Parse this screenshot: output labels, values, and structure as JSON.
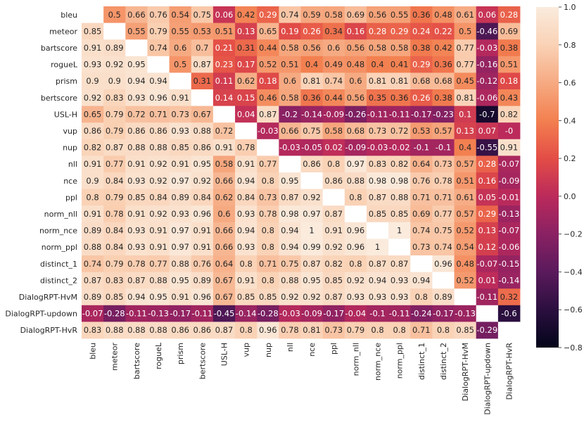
{
  "chart_data": {
    "type": "heatmap",
    "title": "",
    "xlabel": "",
    "ylabel": "",
    "labels": [
      "bleu",
      "meteor",
      "bartscore",
      "rogueL",
      "prism",
      "bertscore",
      "USL-H",
      "vup",
      "nup",
      "nll",
      "nce",
      "ppl",
      "norm_nll",
      "norm_nce",
      "norm_ppl",
      "distinct_1",
      "distinct_2",
      "DialogRPT-HvM",
      "DialogRPT-updown",
      "DialogRPT-HvR"
    ],
    "matrix": [
      [
        null,
        "0.5",
        "0.66",
        "0.76",
        "0.54",
        "0.75",
        "0.06",
        "0.42",
        "0.29",
        "0.74",
        "0.59",
        "0.58",
        "0.69",
        "0.56",
        "0.55",
        "0.36",
        "0.48",
        "0.61",
        "0.06",
        "0.28"
      ],
      [
        "0.85",
        null,
        "0.55",
        "0.79",
        "0.55",
        "0.53",
        "0.51",
        "0.13",
        "0.65",
        "0.19",
        "0.26",
        "0.34",
        "0.16",
        "0.28",
        "0.29",
        "0.24",
        "0.22",
        "0.5",
        "-0.46",
        "0.69"
      ],
      [
        "0.91",
        "0.89",
        null,
        "0.74",
        "0.6",
        "0.7",
        "0.21",
        "0.31",
        "0.44",
        "0.58",
        "0.56",
        "0.6",
        "0.56",
        "0.58",
        "0.58",
        "0.38",
        "0.42",
        "0.77",
        "-0.03",
        "0.38"
      ],
      [
        "0.93",
        "0.92",
        "0.95",
        null,
        "0.5",
        "0.87",
        "0.23",
        "0.17",
        "0.52",
        "0.51",
        "0.4",
        "0.49",
        "0.48",
        "0.4",
        "0.41",
        "0.29",
        "0.36",
        "0.77",
        "-0.16",
        "0.51"
      ],
      [
        "0.9",
        "0.9",
        "0.94",
        "0.94",
        null,
        "0.31",
        "0.11",
        "0.62",
        "0.18",
        "0.6",
        "0.81",
        "0.74",
        "0.6",
        "0.81",
        "0.81",
        "0.68",
        "0.68",
        "0.45",
        "-0.12",
        "0.18"
      ],
      [
        "0.92",
        "0.83",
        "0.93",
        "0.96",
        "0.91",
        null,
        "0.14",
        "0.15",
        "0.46",
        "0.58",
        "0.36",
        "0.44",
        "0.56",
        "0.35",
        "0.36",
        "0.26",
        "0.38",
        "0.81",
        "-0.06",
        "0.43"
      ],
      [
        "0.65",
        "0.79",
        "0.72",
        "0.71",
        "0.73",
        "0.67",
        null,
        "0.04",
        "0.87",
        "-0.2",
        "-0.14",
        "-0.09",
        "-0.26",
        "-0.11",
        "-0.11",
        "-0.17",
        "-0.23",
        "0.1",
        "-0.7",
        "0.82"
      ],
      [
        "0.86",
        "0.79",
        "0.86",
        "0.86",
        "0.93",
        "0.88",
        "0.72",
        null,
        "-0.03",
        "0.66",
        "0.75",
        "0.58",
        "0.68",
        "0.73",
        "0.72",
        "0.53",
        "0.57",
        "0.13",
        "0.07",
        "-0"
      ],
      [
        "0.82",
        "0.87",
        "0.88",
        "0.88",
        "0.85",
        "0.86",
        "0.91",
        "0.78",
        null,
        "-0.03",
        "-0.05",
        "0.02",
        "-0.09",
        "-0.03",
        "-0.02",
        "-0.1",
        "-0.1",
        "0.4",
        "-0.55",
        "0.91"
      ],
      [
        "0.91",
        "0.77",
        "0.91",
        "0.92",
        "0.91",
        "0.95",
        "0.58",
        "0.91",
        "0.77",
        null,
        "0.86",
        "0.8",
        "0.97",
        "0.83",
        "0.82",
        "0.64",
        "0.73",
        "0.57",
        "0.28",
        "-0.07"
      ],
      [
        "0.9",
        "0.84",
        "0.93",
        "0.92",
        "0.97",
        "0.92",
        "0.66",
        "0.94",
        "0.8",
        "0.95",
        null,
        "0.86",
        "0.88",
        "0.98",
        "0.98",
        "0.76",
        "0.78",
        "0.51",
        "0.16",
        "-0.09"
      ],
      [
        "0.8",
        "0.79",
        "0.85",
        "0.84",
        "0.89",
        "0.84",
        "0.62",
        "0.84",
        "0.73",
        "0.87",
        "0.92",
        null,
        "0.8",
        "0.87",
        "0.88",
        "0.71",
        "0.71",
        "0.61",
        "0.05",
        "-0.01"
      ],
      [
        "0.91",
        "0.78",
        "0.91",
        "0.92",
        "0.93",
        "0.96",
        "0.6",
        "0.93",
        "0.78",
        "0.98",
        "0.97",
        "0.87",
        null,
        "0.85",
        "0.85",
        "0.69",
        "0.77",
        "0.57",
        "0.29",
        "-0.13"
      ],
      [
        "0.89",
        "0.84",
        "0.93",
        "0.91",
        "0.97",
        "0.91",
        "0.66",
        "0.94",
        "0.8",
        "0.94",
        "1",
        "0.91",
        "0.96",
        null,
        "1",
        "0.74",
        "0.75",
        "0.52",
        "0.13",
        "-0.07"
      ],
      [
        "0.88",
        "0.84",
        "0.93",
        "0.91",
        "0.97",
        "0.91",
        "0.66",
        "0.93",
        "0.8",
        "0.94",
        "0.99",
        "0.92",
        "0.96",
        "1",
        null,
        "0.73",
        "0.74",
        "0.54",
        "0.12",
        "-0.06"
      ],
      [
        "0.74",
        "0.79",
        "0.78",
        "0.77",
        "0.88",
        "0.76",
        "0.64",
        "0.8",
        "0.71",
        "0.75",
        "0.87",
        "0.82",
        "0.8",
        "0.87",
        "0.87",
        null,
        "0.96",
        "0.48",
        "-0.07",
        "-0.15"
      ],
      [
        "0.87",
        "0.83",
        "0.87",
        "0.88",
        "0.95",
        "0.89",
        "0.67",
        "0.91",
        "0.8",
        "0.88",
        "0.95",
        "0.85",
        "0.92",
        "0.94",
        "0.93",
        "0.94",
        null,
        "0.52",
        "0.01",
        "-0.14"
      ],
      [
        "0.89",
        "0.85",
        "0.94",
        "0.95",
        "0.91",
        "0.96",
        "0.67",
        "0.85",
        "0.85",
        "0.92",
        "0.92",
        "0.87",
        "0.93",
        "0.93",
        "0.93",
        "0.8",
        "0.89",
        null,
        "-0.11",
        "0.32"
      ],
      [
        "-0.07",
        "-0.28",
        "-0.11",
        "-0.13",
        "-0.17",
        "-0.11",
        "-0.45",
        "-0.14",
        "-0.28",
        "-0.03",
        "-0.09",
        "-0.17",
        "-0.04",
        "-0.1",
        "-0.11",
        "-0.24",
        "-0.17",
        "-0.13",
        null,
        "-0.6"
      ],
      [
        "0.83",
        "0.88",
        "0.88",
        "0.88",
        "0.86",
        "0.86",
        "0.87",
        "0.8",
        "0.96",
        "0.78",
        "0.81",
        "0.73",
        "0.79",
        "0.8",
        "0.8",
        "0.71",
        "0.8",
        "0.85",
        "-0.29",
        null
      ]
    ],
    "colorbar": {
      "min": -0.8,
      "max": 1.0,
      "ticks": [
        "1.0",
        "0.8",
        "0.6",
        "0.4",
        "0.2",
        "0.0",
        "-0.2",
        "-0.4",
        "-0.6",
        "-0.8"
      ],
      "colors": [
        "#03051a",
        "#2b0f3f",
        "#5a1a5c",
        "#8a2163",
        "#bb2a5b",
        "#e34d46",
        "#f38050",
        "#f6aa82",
        "#fad2b6",
        "#faebdd"
      ]
    }
  }
}
